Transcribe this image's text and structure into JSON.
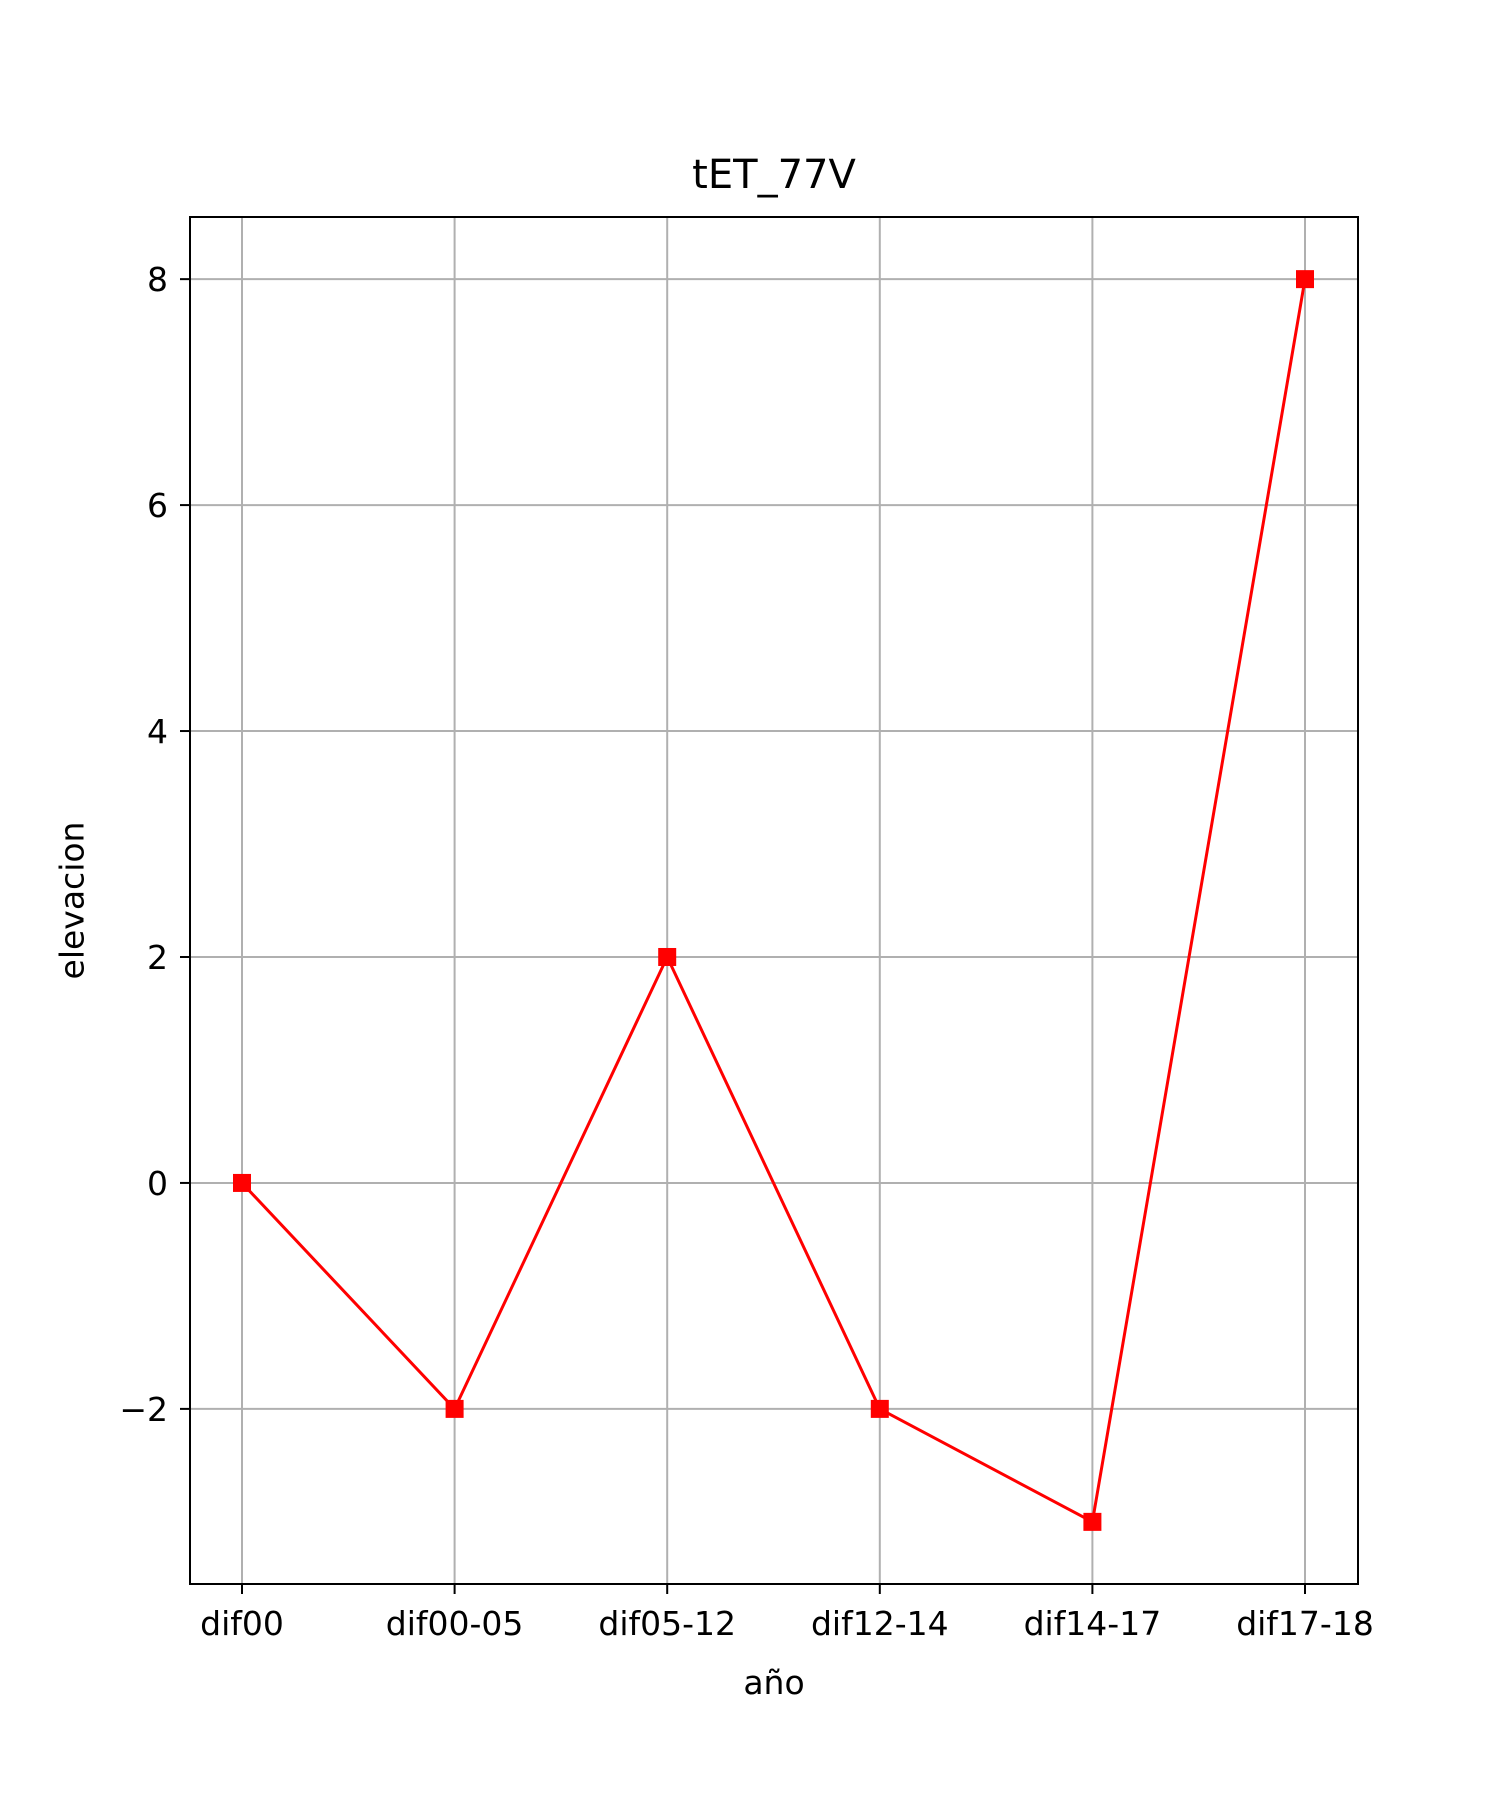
{
  "chart_data": {
    "type": "line",
    "title": "tET_77V",
    "xlabel": "año",
    "ylabel": "elevacion",
    "categories": [
      "dif00",
      "dif00-05",
      "dif05-12",
      "dif12-14",
      "dif14-17",
      "dif17-18"
    ],
    "series": [
      {
        "values": [
          0,
          -2,
          2,
          -2,
          -3,
          8
        ],
        "color": "#ff0000",
        "marker": "square"
      }
    ],
    "ylim": [
      -3.55,
      8.55
    ],
    "yticks": [
      -2,
      0,
      2,
      4,
      6,
      8
    ],
    "ytick_labels": [
      "−2",
      "0",
      "2",
      "4",
      "6",
      "8"
    ],
    "grid": true
  }
}
